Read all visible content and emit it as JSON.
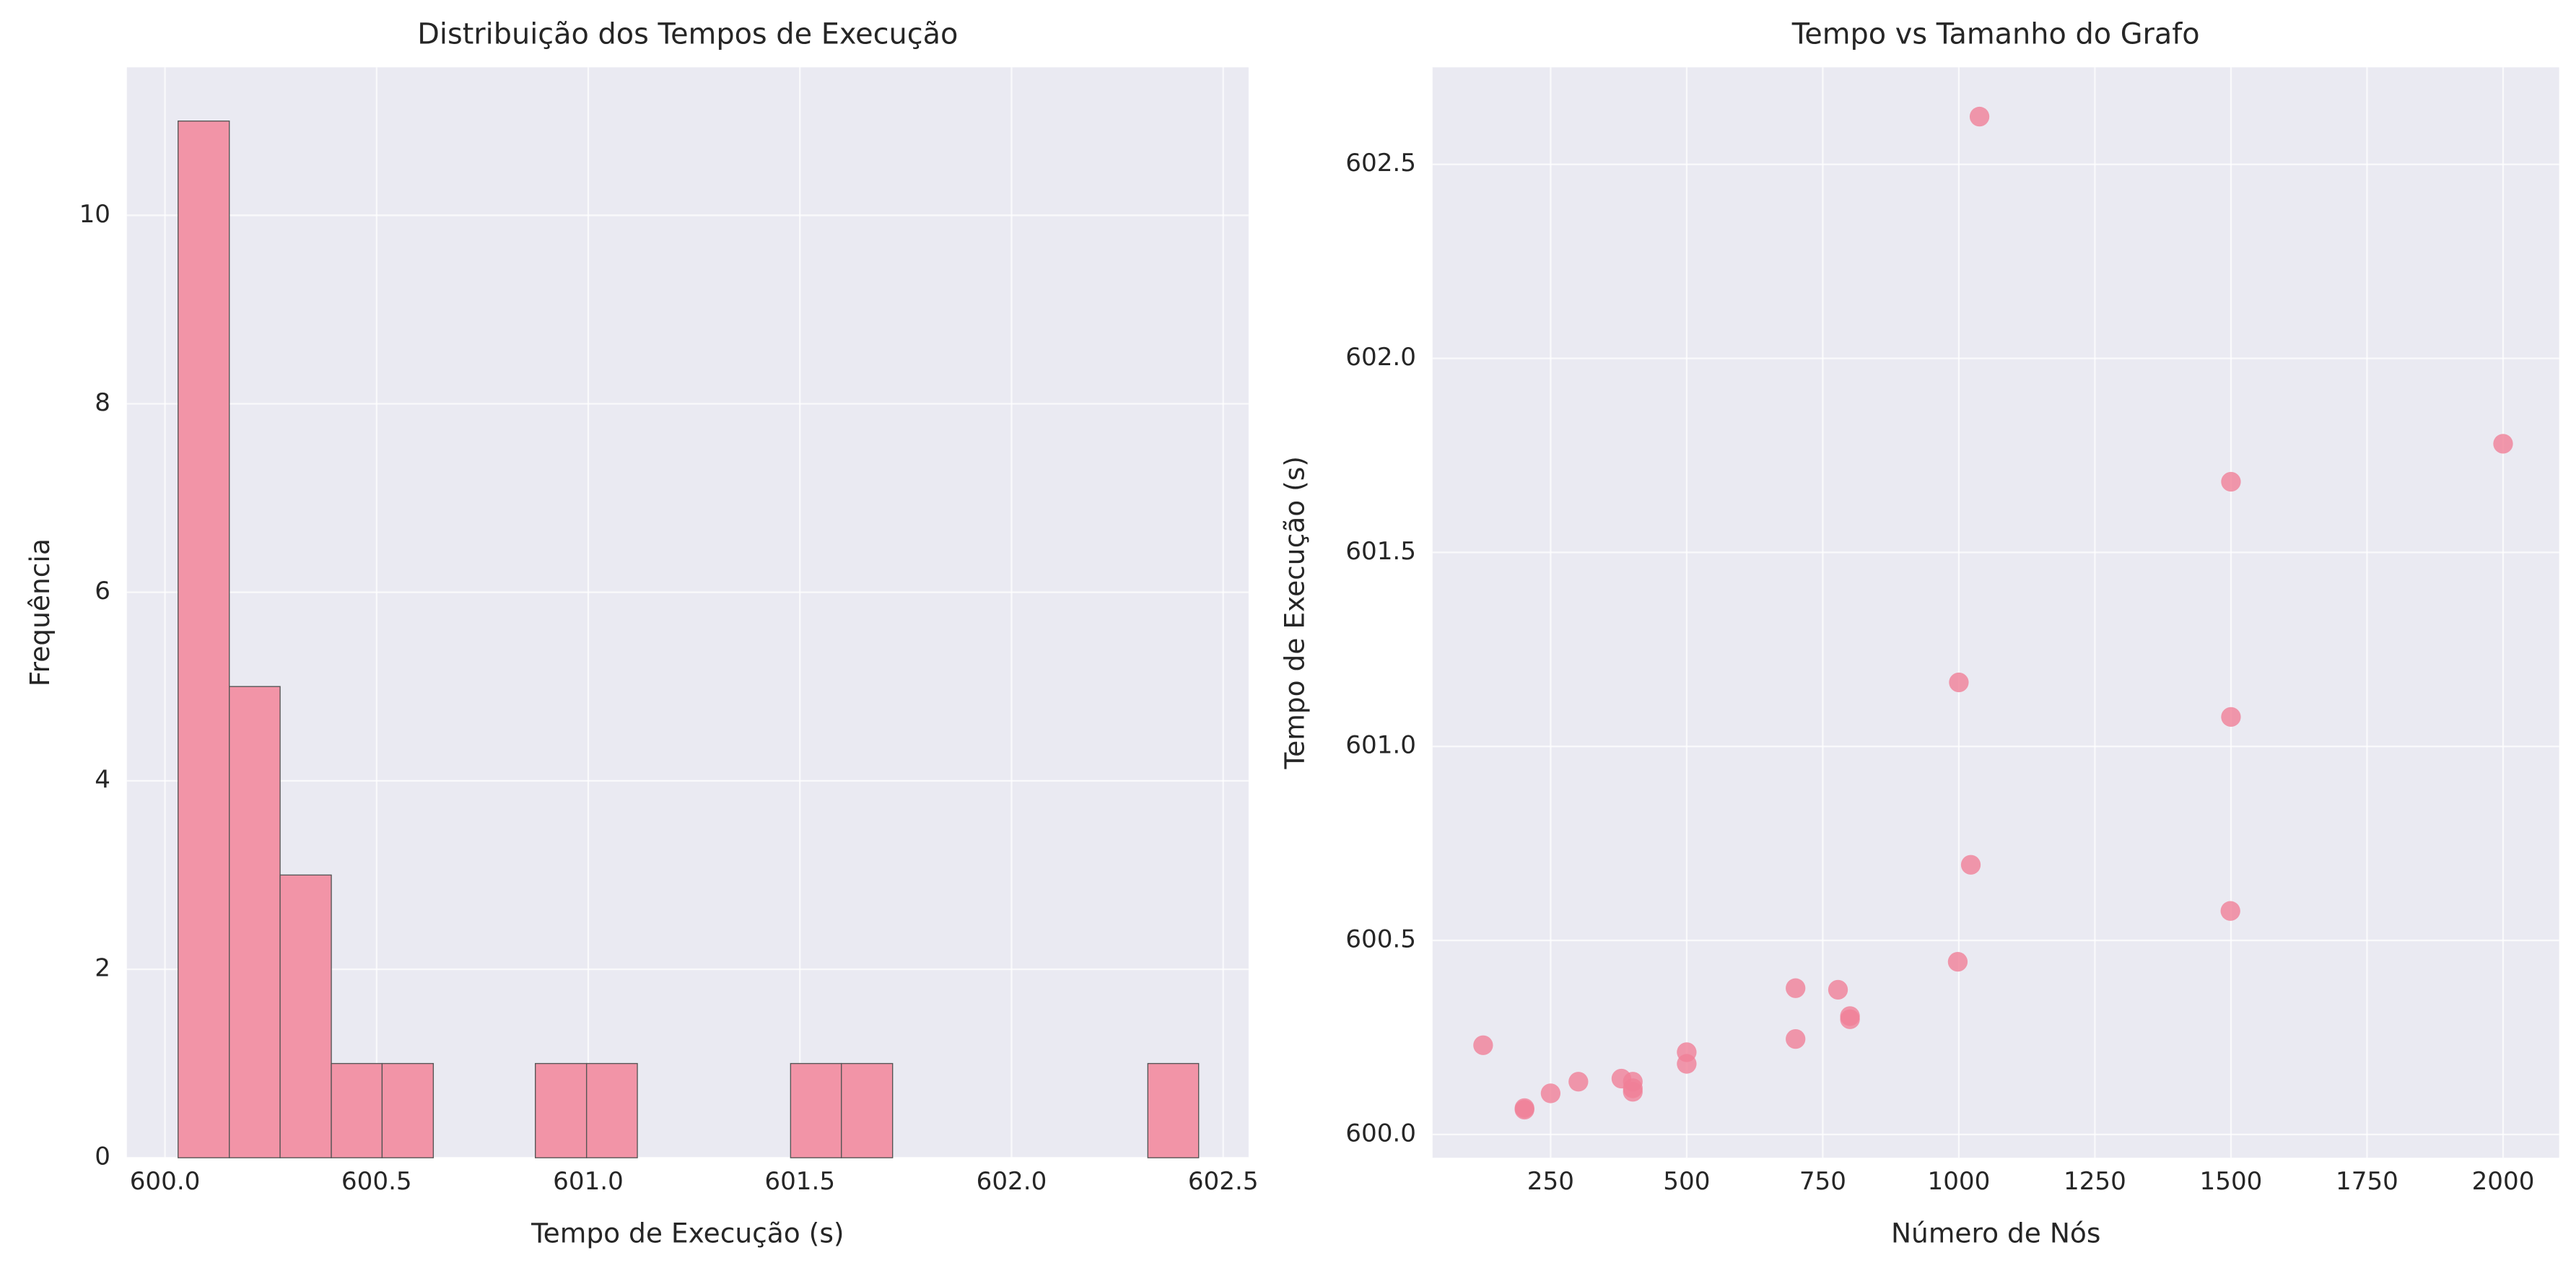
{
  "chart_data": [
    {
      "type": "histogram",
      "title": "Distribuição dos Tempos de Execução",
      "xlabel": "Tempo de Execução (s)",
      "ylabel": "Frequência",
      "bins": [
        600.031,
        600.152,
        600.272,
        600.393,
        600.513,
        600.634,
        600.754,
        600.875,
        600.996,
        601.116,
        601.237,
        601.357,
        601.478,
        601.598,
        601.719,
        601.84,
        601.96,
        602.081,
        602.201,
        602.322,
        602.442
      ],
      "counts": [
        11,
        5,
        3,
        1,
        1,
        0,
        0,
        1,
        1,
        0,
        0,
        0,
        1,
        1,
        0,
        0,
        0,
        0,
        0,
        1
      ],
      "color": "#f294a7",
      "edgecolor": "#555555",
      "xlim": [
        599.91,
        602.56
      ],
      "ylim": [
        0,
        11.57
      ],
      "xticks": [
        {
          "value": 600.0,
          "label": "600.0"
        },
        {
          "value": 600.5,
          "label": "600.5"
        },
        {
          "value": 601.0,
          "label": "601.0"
        },
        {
          "value": 601.5,
          "label": "601.5"
        },
        {
          "value": 602.0,
          "label": "602.0"
        },
        {
          "value": 602.5,
          "label": "602.5"
        }
      ],
      "yticks": [
        0,
        2,
        4,
        6,
        8,
        10
      ],
      "grid": true
    },
    {
      "type": "scatter",
      "title": "Tempo vs Tamanho do Grafo",
      "xlabel": "Número de Nós",
      "ylabel": "Tempo de Execução (s)",
      "x": [
        126,
        202,
        202,
        250,
        301,
        380,
        401,
        401,
        401,
        500,
        500,
        700,
        700,
        778,
        800,
        800,
        998,
        1022,
        1000,
        1038,
        1499,
        1500,
        1500,
        2000
      ],
      "y": [
        600.23,
        600.064,
        600.068,
        600.106,
        600.136,
        600.144,
        600.136,
        600.119,
        600.11,
        600.212,
        600.182,
        600.246,
        600.377,
        600.373,
        600.305,
        600.297,
        600.445,
        600.695,
        601.165,
        602.623,
        600.576,
        601.076,
        601.682,
        601.78
      ],
      "color": "#f07f97",
      "xlim": [
        33,
        2103
      ],
      "ylim": [
        599.94,
        602.75
      ],
      "xticks": [
        250,
        500,
        750,
        1000,
        1250,
        1500,
        1750,
        2000
      ],
      "yticks": [
        {
          "value": 600.0,
          "label": "600.0"
        },
        {
          "value": 600.5,
          "label": "600.5"
        },
        {
          "value": 601.0,
          "label": "601.0"
        },
        {
          "value": 601.5,
          "label": "601.5"
        },
        {
          "value": 602.0,
          "label": "602.0"
        },
        {
          "value": 602.5,
          "label": "602.5"
        }
      ],
      "grid": true
    }
  ]
}
